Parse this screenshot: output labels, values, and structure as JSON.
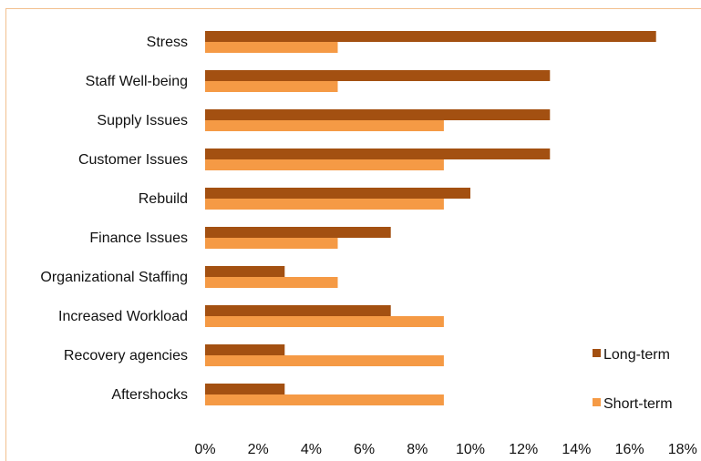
{
  "chart_data": {
    "type": "bar",
    "orientation": "horizontal",
    "categories": [
      "Stress",
      "Staff Well-being",
      "Supply Issues",
      "Customer Issues",
      "Rebuild",
      "Finance Issues",
      "Organizational Staffing",
      "Increased Workload",
      "Recovery agencies",
      "Aftershocks"
    ],
    "series": [
      {
        "name": "Long-term",
        "color": "#a35011",
        "values": [
          17,
          13,
          13,
          13,
          10,
          7,
          3,
          7,
          3,
          3
        ]
      },
      {
        "name": "Short-term",
        "color": "#f59a45",
        "values": [
          5,
          5,
          9,
          9,
          9,
          5,
          5,
          9,
          9,
          9
        ]
      }
    ],
    "x_ticks": [
      "0%",
      "2%",
      "4%",
      "6%",
      "8%",
      "10%",
      "12%",
      "14%",
      "16%",
      "18%"
    ],
    "xlim": [
      0,
      18
    ],
    "grid": false,
    "legend": "bottom-right"
  }
}
